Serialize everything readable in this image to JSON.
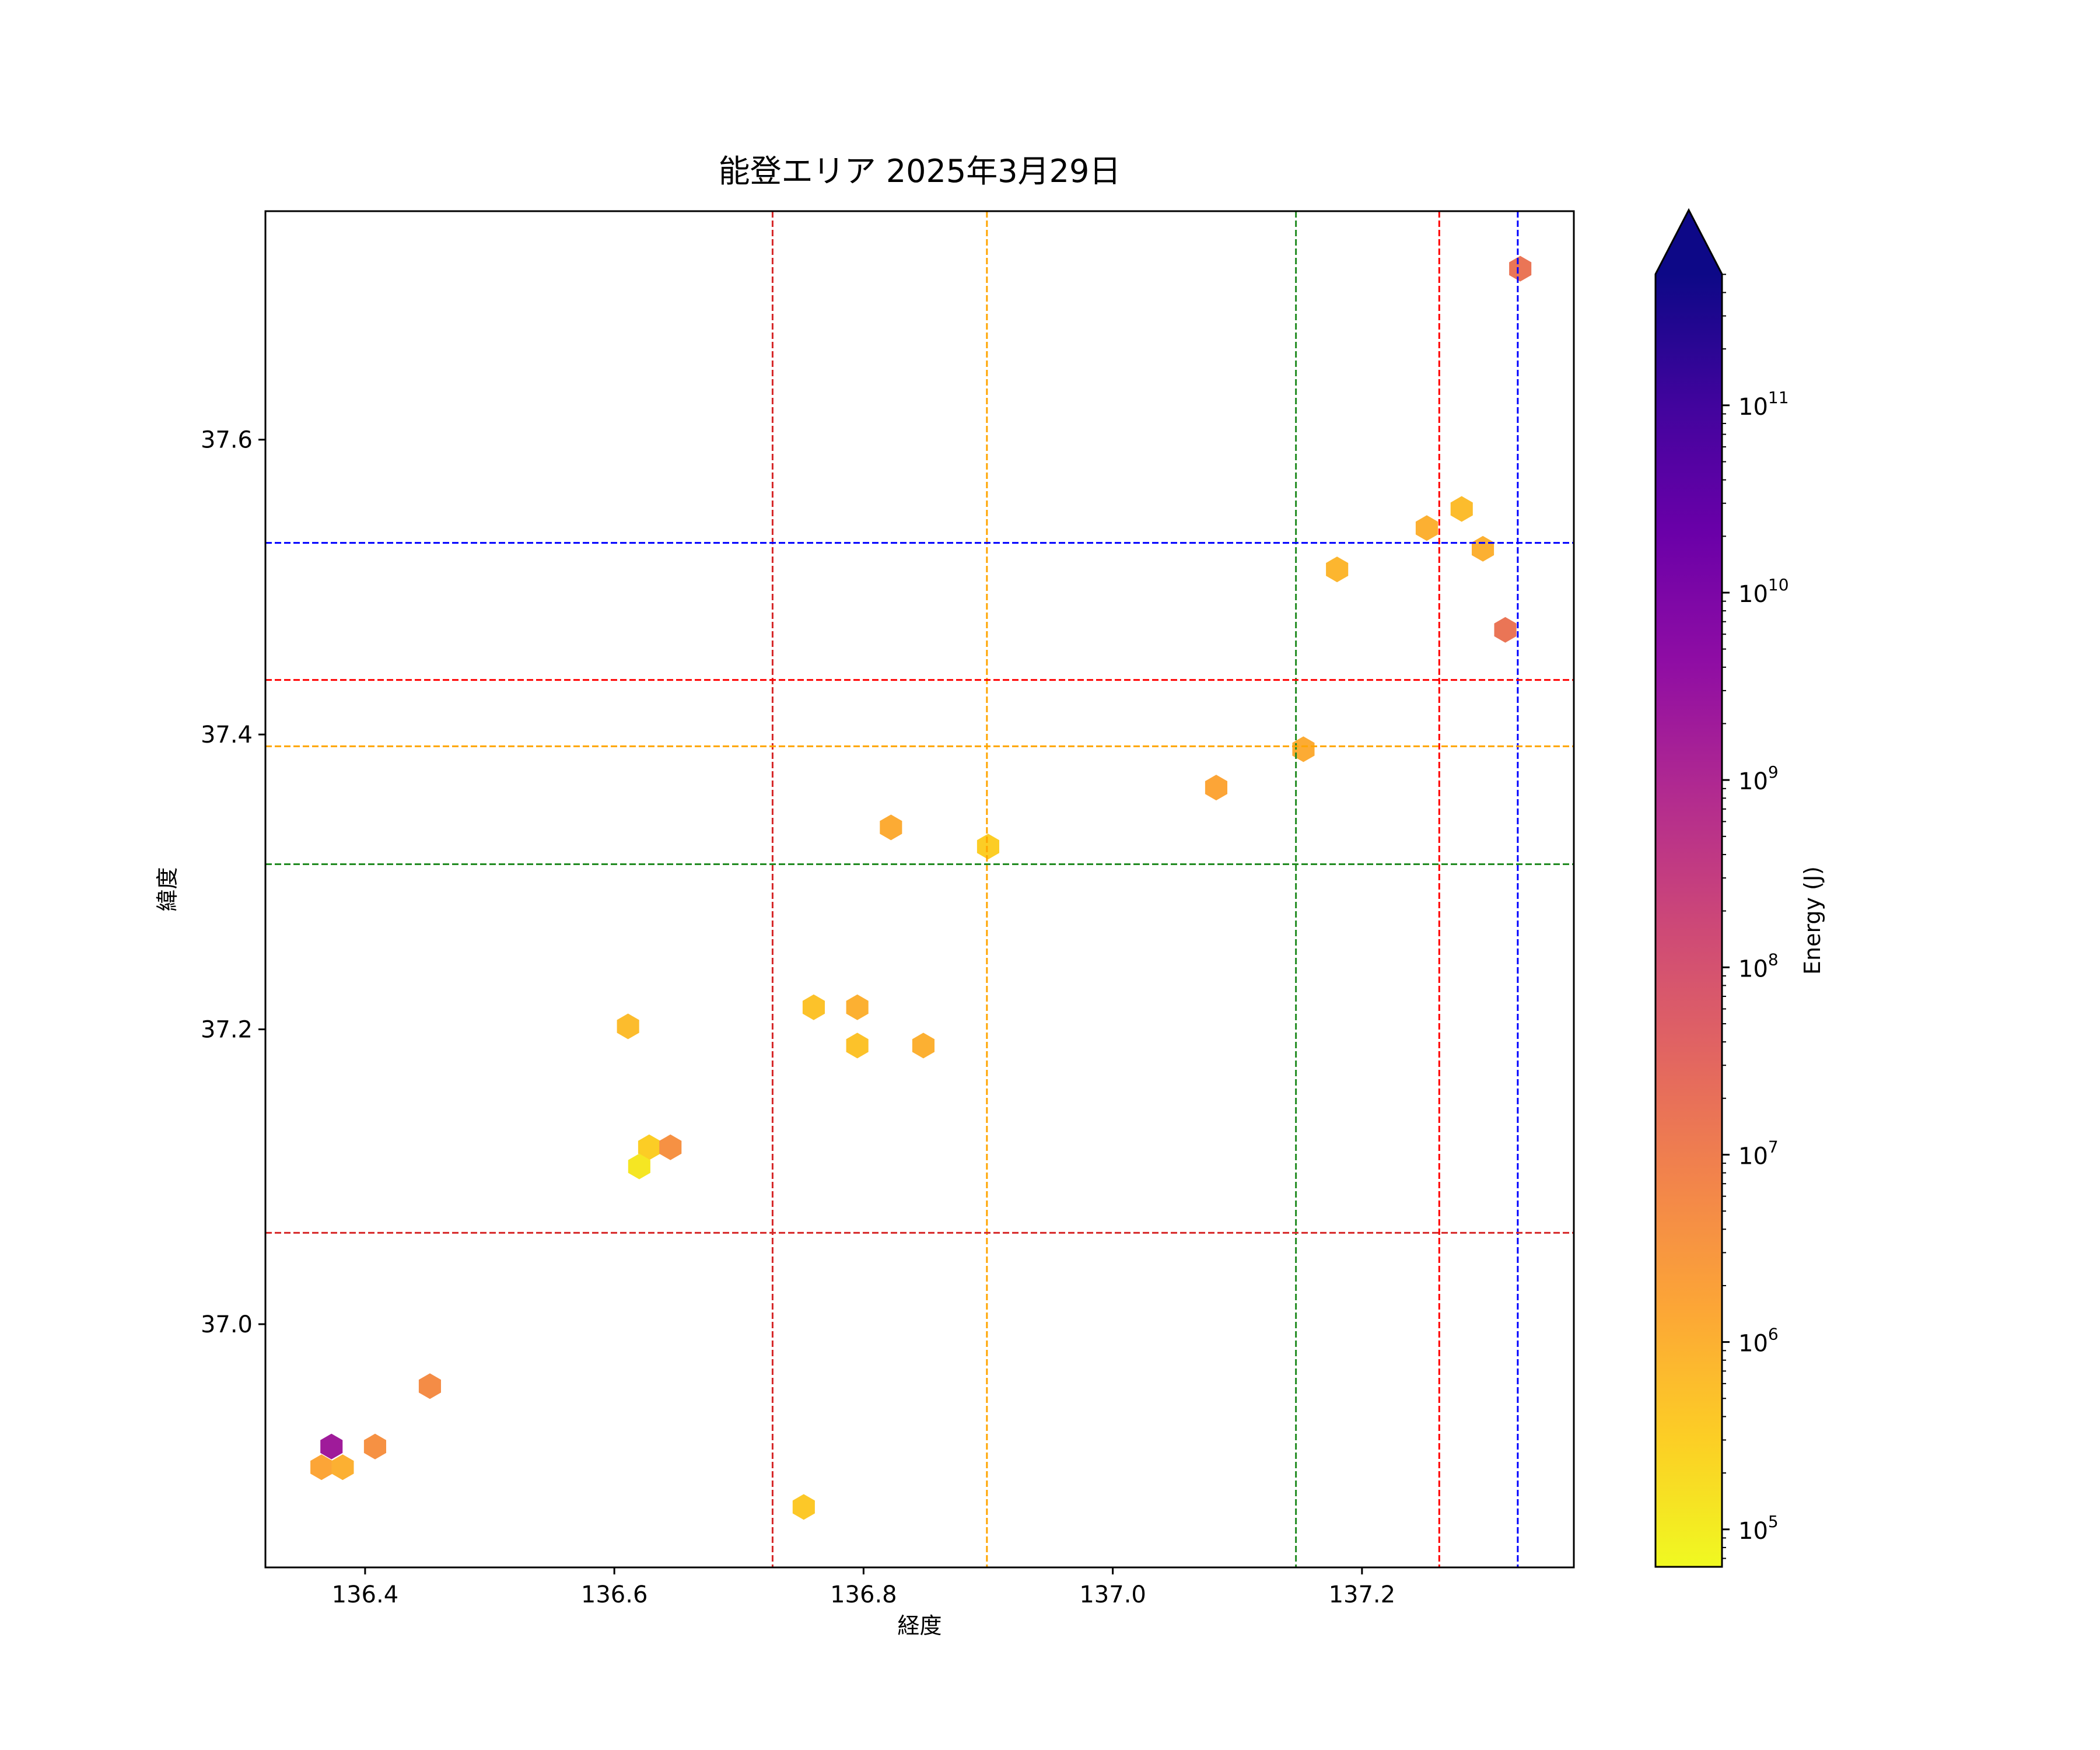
{
  "chart_data": {
    "type": "hexbin",
    "title": "能登エリア 2025年3月29日",
    "xlabel": "経度",
    "ylabel": "緯度",
    "xlim": [
      136.32,
      137.37
    ],
    "ylim": [
      36.835,
      37.755
    ],
    "xticks": [
      "136.4",
      "136.6",
      "136.8",
      "137.0",
      "137.2"
    ],
    "xtick_values": [
      136.4,
      136.6,
      136.8,
      137.0,
      137.2
    ],
    "yticks": [
      "37.0",
      "37.2",
      "37.4",
      "37.6"
    ],
    "ytick_values": [
      37.0,
      37.2,
      37.4,
      37.6
    ],
    "colorbar": {
      "label": "Energy (J)",
      "colormap": "plasma_r",
      "scale": "log",
      "range_log10": [
        4.8,
        11.7
      ],
      "extend": "max",
      "ticks": [
        {
          "exp": 5,
          "label": "10",
          "sup": "5"
        },
        {
          "exp": 6,
          "label": "10",
          "sup": "6"
        },
        {
          "exp": 7,
          "label": "10",
          "sup": "7"
        },
        {
          "exp": 8,
          "label": "10",
          "sup": "8"
        },
        {
          "exp": 9,
          "label": "10",
          "sup": "9"
        },
        {
          "exp": 10,
          "label": "10",
          "sup": "10"
        },
        {
          "exp": 11,
          "label": "10",
          "sup": "11"
        }
      ]
    },
    "reference_lines": {
      "vertical": [
        {
          "x": 136.727,
          "color": "#d62728"
        },
        {
          "x": 136.899,
          "color": "#ffa500"
        },
        {
          "x": 137.147,
          "color": "#228b22"
        },
        {
          "x": 137.262,
          "color": "#ff0000"
        },
        {
          "x": 137.325,
          "color": "#0000ff"
        }
      ],
      "horizontal": [
        {
          "y": 37.53,
          "color": "#0000ff"
        },
        {
          "y": 37.437,
          "color": "#ff0000"
        },
        {
          "y": 37.392,
          "color": "#ffa500"
        },
        {
          "y": 37.312,
          "color": "#228b22"
        },
        {
          "y": 37.062,
          "color": "#d62728"
        }
      ]
    },
    "points": [
      {
        "lon": 137.327,
        "lat": 37.716,
        "log_energy": 7.2
      },
      {
        "lon": 137.28,
        "lat": 37.553,
        "log_energy": 5.8
      },
      {
        "lon": 137.252,
        "lat": 37.54,
        "log_energy": 6.0
      },
      {
        "lon": 137.297,
        "lat": 37.526,
        "log_energy": 6.0
      },
      {
        "lon": 137.18,
        "lat": 37.512,
        "log_energy": 5.9
      },
      {
        "lon": 137.315,
        "lat": 37.471,
        "log_energy": 7.2
      },
      {
        "lon": 137.153,
        "lat": 37.39,
        "log_energy": 6.1
      },
      {
        "lon": 137.083,
        "lat": 37.364,
        "log_energy": 6.2
      },
      {
        "lon": 136.822,
        "lat": 37.337,
        "log_energy": 6.1
      },
      {
        "lon": 136.9,
        "lat": 37.324,
        "log_energy": 5.5
      },
      {
        "lon": 136.611,
        "lat": 37.202,
        "log_energy": 5.8
      },
      {
        "lon": 136.76,
        "lat": 37.215,
        "log_energy": 5.7
      },
      {
        "lon": 136.795,
        "lat": 37.215,
        "log_energy": 6.0
      },
      {
        "lon": 136.795,
        "lat": 37.189,
        "log_energy": 5.7
      },
      {
        "lon": 136.848,
        "lat": 37.189,
        "log_energy": 6.0
      },
      {
        "lon": 136.628,
        "lat": 37.12,
        "log_energy": 5.5
      },
      {
        "lon": 136.645,
        "lat": 37.12,
        "log_energy": 6.6
      },
      {
        "lon": 136.62,
        "lat": 37.107,
        "log_energy": 5.1
      },
      {
        "lon": 136.452,
        "lat": 36.958,
        "log_energy": 6.7
      },
      {
        "lon": 136.373,
        "lat": 36.917,
        "log_energy": 9.3
      },
      {
        "lon": 136.408,
        "lat": 36.917,
        "log_energy": 6.6
      },
      {
        "lon": 136.365,
        "lat": 36.903,
        "log_energy": 6.2
      },
      {
        "lon": 136.382,
        "lat": 36.903,
        "log_energy": 6.0
      },
      {
        "lon": 136.752,
        "lat": 36.876,
        "log_energy": 5.6
      }
    ]
  }
}
